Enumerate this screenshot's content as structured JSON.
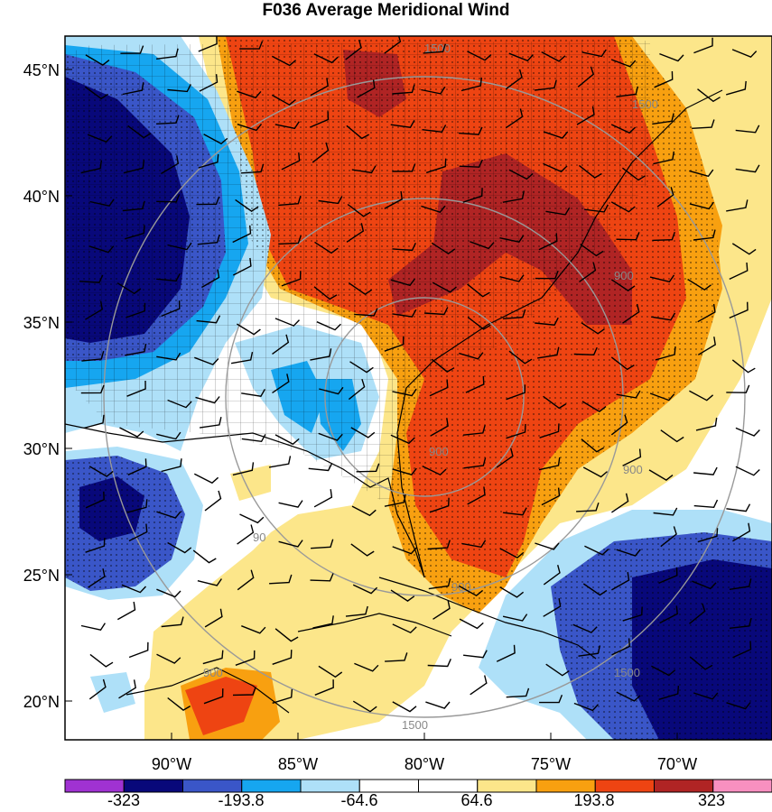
{
  "title": "F036 Average Meridional Wind",
  "lat_labels": [
    "45°N",
    "40°N",
    "35°N",
    "30°N",
    "25°N",
    "20°N"
  ],
  "lon_labels": [
    "90°W",
    "85°W",
    "80°W",
    "75°W",
    "70°W"
  ],
  "colorbar": {
    "colors": [
      "#a032d2",
      "#08087a",
      "#3a56c8",
      "#16a6f0",
      "#aee0f8",
      "#ffffff",
      "#ffffff",
      "#fce68a",
      "#f8a010",
      "#ee4412",
      "#b02424",
      "#f890c0"
    ],
    "labels": [
      "-323",
      "-193.8",
      "-64.6",
      "64.6",
      "193.8",
      "323"
    ]
  },
  "ring_labels": [
    "1500",
    "900",
    "900",
    "90",
    "900",
    "1500",
    "900",
    "1500",
    "900",
    "1500"
  ],
  "map_extent": {
    "lon_min": -93.2,
    "lon_max": -65.6,
    "lat_min": 18.5,
    "lat_max": 46.4
  }
}
